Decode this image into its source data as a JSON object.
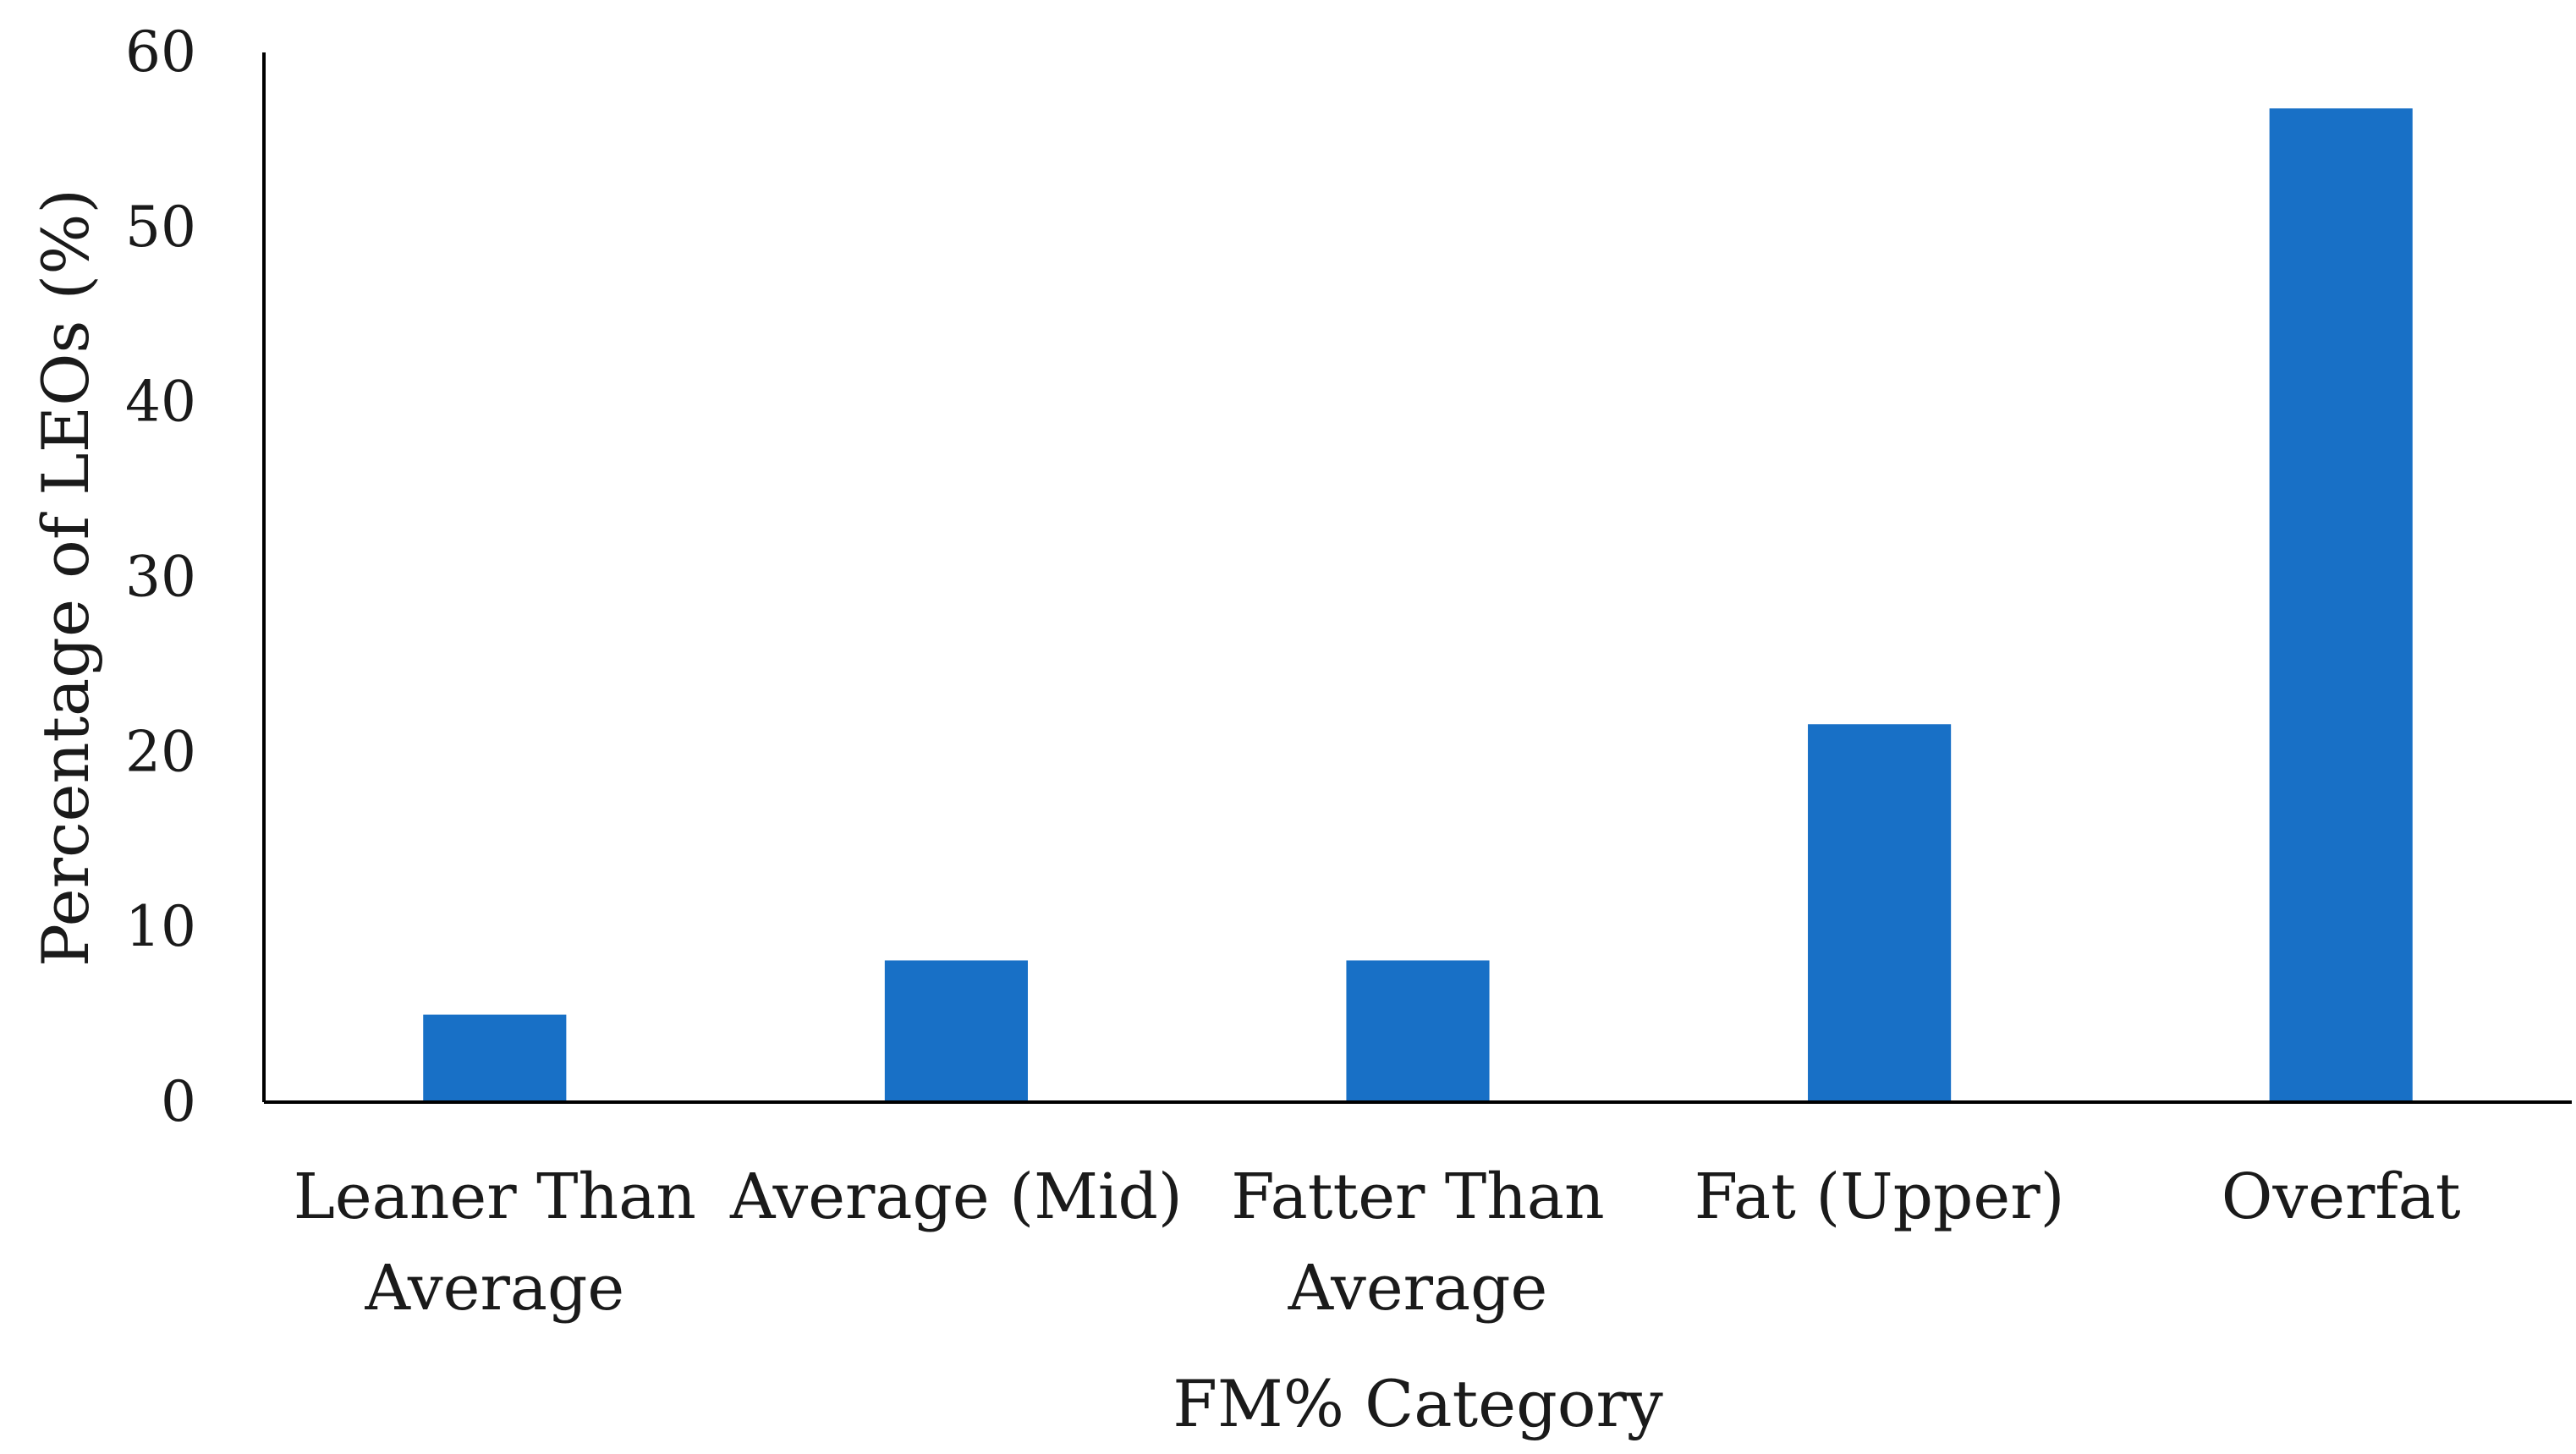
{
  "chart_data": {
    "type": "bar",
    "title": "",
    "xlabel": "FM% Category",
    "ylabel": "Percentage of LEOs (%)",
    "categories": [
      [
        "Leaner Than",
        "Average"
      ],
      [
        "Average (Mid)"
      ],
      [
        "Fatter Than",
        "Average"
      ],
      [
        "Fat (Upper)"
      ],
      [
        "Overfat"
      ]
    ],
    "values": [
      5,
      8.1,
      8.1,
      21.6,
      56.8
    ],
    "ylim": [
      0,
      60
    ],
    "yticks": [
      0,
      10,
      20,
      30,
      40,
      50,
      60
    ],
    "grid": false,
    "bar_color": "#1870c6"
  }
}
